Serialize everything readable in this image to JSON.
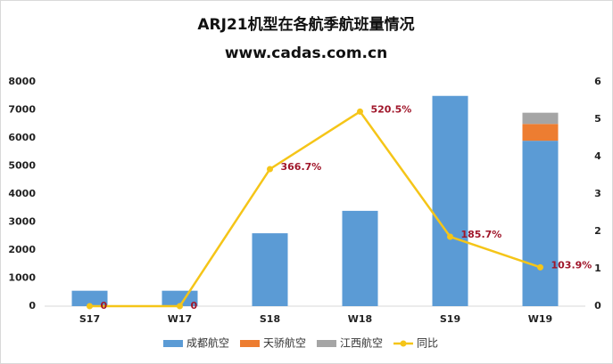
{
  "chart_data": {
    "type": "bar_line",
    "title": "ARJ21机型在各航季航班量情况",
    "subtitle": "www.cadas.com.cn",
    "categories": [
      "S17",
      "W17",
      "S18",
      "W18",
      "S19",
      "W19"
    ],
    "series": [
      {
        "name": "成都航空",
        "type": "bar",
        "color": "#5b9bd5",
        "values": [
          550,
          550,
          2600,
          3400,
          7500,
          5900
        ]
      },
      {
        "name": "天骄航空",
        "type": "bar",
        "color": "#ed7d31",
        "values": [
          0,
          0,
          0,
          0,
          0,
          600
        ]
      },
      {
        "name": "江西航空",
        "type": "bar",
        "color": "#a5a5a5",
        "values": [
          0,
          0,
          0,
          0,
          0,
          400
        ]
      },
      {
        "name": "同比",
        "type": "line",
        "axis": "y2",
        "color": "#f5c518",
        "values": [
          0,
          0,
          3.667,
          5.205,
          1.857,
          1.039
        ],
        "value_labels": [
          "0",
          "0",
          "366.7%",
          "520.5%",
          "185.7%",
          "103.9%"
        ]
      }
    ],
    "ylim": [
      0,
      8000
    ],
    "yticks": [
      0,
      1000,
      2000,
      3000,
      4000,
      5000,
      6000,
      7000,
      8000
    ],
    "y2lim": [
      0,
      6
    ],
    "y2ticks": [
      0,
      1,
      2,
      3,
      4,
      5,
      6
    ],
    "stacked": true,
    "grid": false,
    "legend": "bottom"
  }
}
